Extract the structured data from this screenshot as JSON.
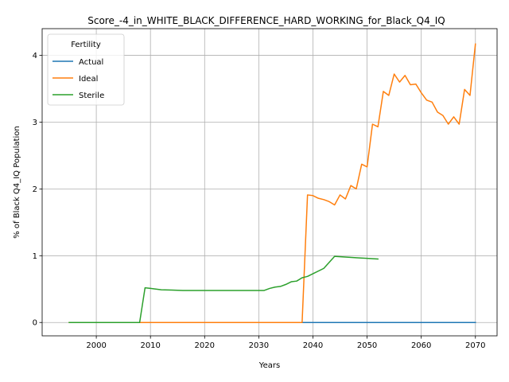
{
  "chart_data": {
    "type": "line",
    "title": "Score_-4_in_WHITE_BLACK_DIFFERENCE_HARD_WORKING_for_Black_Q4_IQ",
    "xlabel": "Years",
    "ylabel": "% of Black Q4_IQ Population",
    "xlim": [
      1990,
      2074
    ],
    "ylim": [
      -0.2,
      4.4
    ],
    "x_ticks": [
      2000,
      2010,
      2020,
      2030,
      2040,
      2050,
      2060,
      2070
    ],
    "y_ticks": [
      0,
      1,
      2,
      3,
      4
    ],
    "grid": true,
    "legend": {
      "title": "Fertility",
      "placement": "top-left"
    },
    "series": [
      {
        "name": "Actual",
        "color": "#1f77b4",
        "x": [
          2027,
          2030,
          2035,
          2040,
          2045,
          2050,
          2055,
          2060,
          2065,
          2070
        ],
        "y": [
          0,
          0,
          0,
          0,
          0,
          0,
          0,
          0,
          0,
          0
        ]
      },
      {
        "name": "Ideal",
        "color": "#ff7f0e",
        "x": [
          1995,
          2005,
          2015,
          2025,
          2035,
          2038,
          2039,
          2040,
          2041,
          2042,
          2043,
          2044,
          2045,
          2046,
          2047,
          2048,
          2049,
          2050,
          2051,
          2052,
          2053,
          2054,
          2055,
          2056,
          2057,
          2058,
          2059,
          2060,
          2061,
          2062,
          2063,
          2064,
          2065,
          2066,
          2067,
          2068,
          2069,
          2070
        ],
        "y": [
          0,
          0,
          0,
          0,
          0,
          0,
          1.91,
          1.9,
          1.86,
          1.84,
          1.81,
          1.76,
          1.91,
          1.85,
          2.05,
          2.0,
          2.37,
          2.33,
          2.97,
          2.93,
          3.46,
          3.4,
          3.72,
          3.6,
          3.7,
          3.56,
          3.57,
          3.44,
          3.33,
          3.3,
          3.15,
          3.1,
          2.97,
          3.08,
          2.97,
          3.49,
          3.4,
          4.17
        ]
      },
      {
        "name": "Sterile",
        "color": "#2ca02c",
        "x": [
          1995,
          2000,
          2005,
          2008,
          2009,
          2010,
          2011,
          2012,
          2014,
          2016,
          2020,
          2025,
          2030,
          2031,
          2032,
          2033,
          2034,
          2035,
          2036,
          2037,
          2038,
          2039,
          2040,
          2042,
          2044,
          2046,
          2048,
          2050,
          2052
        ],
        "y": [
          0,
          0,
          0,
          0,
          0.52,
          0.51,
          0.5,
          0.49,
          0.485,
          0.48,
          0.48,
          0.48,
          0.48,
          0.48,
          0.51,
          0.53,
          0.54,
          0.57,
          0.61,
          0.62,
          0.67,
          0.69,
          0.73,
          0.81,
          0.99,
          0.98,
          0.97,
          0.96,
          0.95
        ]
      }
    ]
  }
}
